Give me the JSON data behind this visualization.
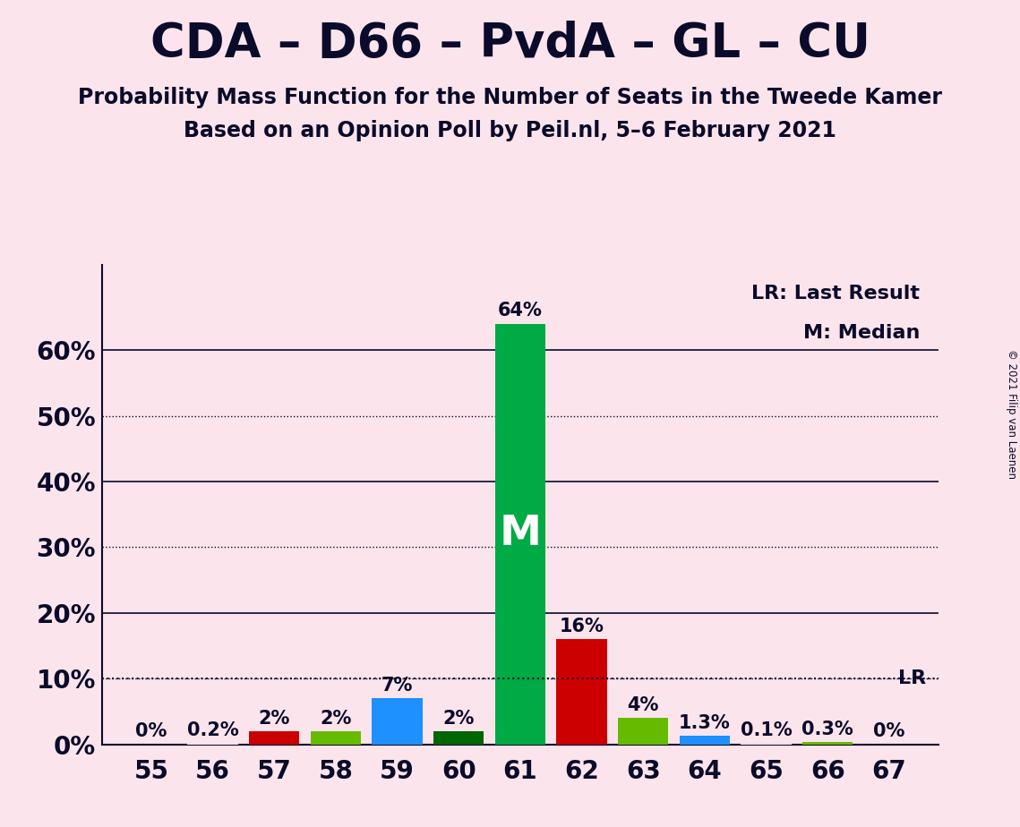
{
  "title": "CDA – D66 – PvdA – GL – CU",
  "subtitle1": "Probability Mass Function for the Number of Seats in the Tweede Kamer",
  "subtitle2": "Based on an Opinion Poll by Peil.nl, 5–6 February 2021",
  "copyright": "© 2021 Filip van Laenen",
  "seats": [
    55,
    56,
    57,
    58,
    59,
    60,
    61,
    62,
    63,
    64,
    65,
    66,
    67
  ],
  "values": [
    0.0,
    0.2,
    2.0,
    2.0,
    7.0,
    2.0,
    64.0,
    16.0,
    4.0,
    1.3,
    0.1,
    0.3,
    0.0
  ],
  "bar_colors": [
    "#fce4ec",
    "#fce4ec",
    "#cc0000",
    "#66bb00",
    "#1e90ff",
    "#006600",
    "#00aa44",
    "#cc0000",
    "#66bb00",
    "#1e90ff",
    "#fce4ec",
    "#66bb00",
    "#fce4ec"
  ],
  "labels": [
    "0%",
    "0.2%",
    "2%",
    "2%",
    "7%",
    "2%",
    "64%",
    "16%",
    "4%",
    "1.3%",
    "0.1%",
    "0.3%",
    "0%"
  ],
  "show_label": [
    true,
    true,
    true,
    true,
    true,
    true,
    true,
    true,
    true,
    true,
    true,
    true,
    true
  ],
  "median_seat": 61,
  "lr_value": 10.0,
  "background_color": "#fce4ec",
  "title_fontsize": 38,
  "subtitle_fontsize": 17,
  "label_fontsize": 15,
  "tick_fontsize": 20,
  "ytick_labels": [
    "0%",
    "10%",
    "20%",
    "30%",
    "40%",
    "50%",
    "60%",
    ""
  ],
  "ytick_values": [
    0,
    10,
    20,
    30,
    40,
    50,
    60,
    70
  ],
  "ylim": [
    0,
    73
  ],
  "solid_gridlines": [
    20,
    40,
    60
  ],
  "dotted_gridlines": [
    10,
    30,
    50
  ],
  "lr_dotted": 10,
  "legend_text1": "LR: Last Result",
  "legend_text2": "M: Median"
}
